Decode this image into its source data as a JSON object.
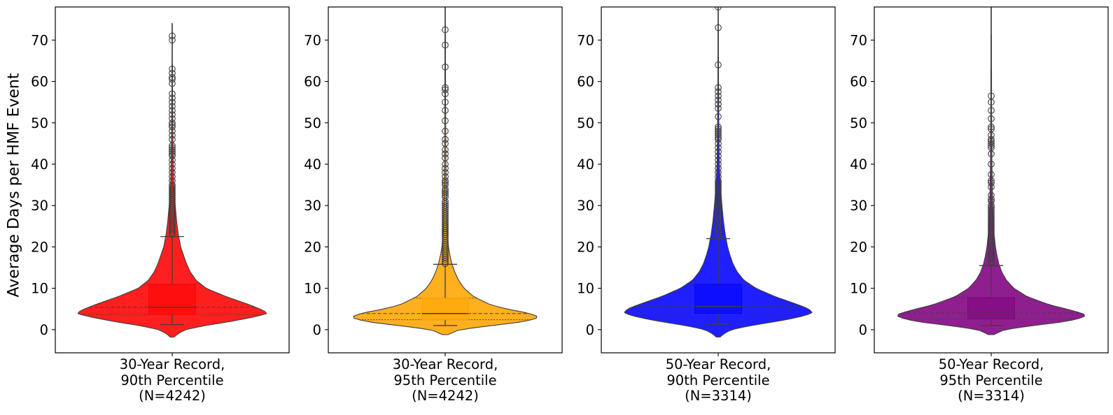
{
  "ylabel": "Average Days per HMF Event",
  "chart_data": [
    {
      "type": "violin",
      "label": [
        "30-Year Record,",
        "90th Percentile",
        "(N=4242)"
      ],
      "color": "#ff0000",
      "ylim": [
        -5.6,
        78
      ],
      "yticks": [
        0,
        10,
        20,
        30,
        40,
        50,
        60,
        70
      ],
      "box": {
        "q1": 3.7,
        "median": 5.4,
        "q3": 11.0,
        "whisker_low": 1.2,
        "whisker_high": 22.5
      },
      "violin_range": [
        -1.8,
        74
      ],
      "density": [
        [
          -1.8,
          0.02
        ],
        [
          -1,
          0.06
        ],
        [
          0,
          0.14
        ],
        [
          1,
          0.35
        ],
        [
          2,
          0.62
        ],
        [
          3,
          0.85
        ],
        [
          3.8,
          1.0
        ],
        [
          4.5,
          0.98
        ],
        [
          6,
          0.82
        ],
        [
          8,
          0.57
        ],
        [
          10,
          0.36
        ],
        [
          12,
          0.25
        ],
        [
          14,
          0.19
        ],
        [
          16,
          0.15
        ],
        [
          18,
          0.12
        ],
        [
          20,
          0.09
        ],
        [
          23,
          0.065
        ],
        [
          26,
          0.048
        ],
        [
          29,
          0.036
        ],
        [
          32,
          0.024
        ],
        [
          36,
          0.015
        ],
        [
          42,
          0.009
        ],
        [
          50,
          0.005
        ],
        [
          60,
          0.003
        ],
        [
          70,
          0.002
        ],
        [
          74,
          0.0
        ]
      ],
      "outliers": [
        23,
        23.5,
        24,
        24.5,
        25,
        25.5,
        26,
        26.5,
        27,
        27.5,
        28,
        28.5,
        29,
        29.5,
        30,
        30.5,
        31,
        31.5,
        32,
        32.5,
        33,
        33.5,
        34,
        34.5,
        35,
        36,
        37,
        38,
        39,
        40,
        41,
        42,
        42.5,
        43,
        43.5,
        44,
        44.5,
        46,
        47,
        48,
        49,
        49.5,
        50,
        51,
        52,
        53,
        54,
        55,
        56,
        57,
        59.5,
        60.5,
        61,
        62,
        63,
        70,
        71
      ]
    },
    {
      "type": "violin",
      "label": [
        "30-Year Record,",
        "95th Percentile",
        "(N=4242)"
      ],
      "color": "#ffa500",
      "ylim": [
        -5.6,
        78
      ],
      "yticks": [
        0,
        10,
        20,
        30,
        40,
        50,
        60,
        70
      ],
      "box": {
        "q1": 2.4,
        "median": 3.9,
        "q3": 7.6,
        "whisker_low": 1.0,
        "whisker_high": 15.8
      },
      "violin_range": [
        -1.2,
        78
      ],
      "density": [
        [
          -1.2,
          0.03
        ],
        [
          0,
          0.15
        ],
        [
          1,
          0.5
        ],
        [
          2,
          0.85
        ],
        [
          3,
          1.0
        ],
        [
          4,
          0.88
        ],
        [
          5,
          0.65
        ],
        [
          6,
          0.48
        ],
        [
          8,
          0.3
        ],
        [
          10,
          0.2
        ],
        [
          12,
          0.14
        ],
        [
          14,
          0.1
        ],
        [
          16,
          0.07
        ],
        [
          18,
          0.05
        ],
        [
          20,
          0.035
        ],
        [
          24,
          0.02
        ],
        [
          30,
          0.012
        ],
        [
          40,
          0.007
        ],
        [
          55,
          0.004
        ],
        [
          78,
          0.002
        ]
      ],
      "outliers": [
        16,
        16.5,
        17,
        17.5,
        18,
        18.5,
        19,
        19.5,
        20,
        20.5,
        21,
        21.5,
        22,
        22.5,
        23,
        23.5,
        24,
        24.5,
        25,
        25.5,
        26,
        26.5,
        27,
        27.5,
        28,
        28.5,
        29,
        29.5,
        30,
        30.5,
        31,
        32,
        32.5,
        33,
        33.5,
        34,
        35,
        35.5,
        36,
        37,
        38,
        39,
        40,
        41.5,
        42.5,
        43.5,
        45,
        46,
        48,
        50.5,
        53,
        55,
        57,
        58,
        58.5,
        63.5,
        68.8,
        72.5
      ]
    },
    {
      "type": "violin",
      "label": [
        "50-Year Record,",
        "90th Percentile",
        "(N=3314)"
      ],
      "color": "#0000ff",
      "ylim": [
        -5.6,
        78
      ],
      "yticks": [
        0,
        10,
        20,
        30,
        40,
        50,
        60,
        70
      ],
      "box": {
        "q1": 3.9,
        "median": 5.6,
        "q3": 11.0,
        "whisker_low": 1.3,
        "whisker_high": 22.0
      },
      "violin_range": [
        -1.8,
        78
      ],
      "density": [
        [
          -1.8,
          0.02
        ],
        [
          -1,
          0.06
        ],
        [
          0,
          0.14
        ],
        [
          1,
          0.35
        ],
        [
          2,
          0.62
        ],
        [
          3,
          0.85
        ],
        [
          4,
          1.0
        ],
        [
          5,
          0.96
        ],
        [
          6,
          0.85
        ],
        [
          8,
          0.6
        ],
        [
          10,
          0.4
        ],
        [
          12,
          0.27
        ],
        [
          14,
          0.2
        ],
        [
          16,
          0.155
        ],
        [
          18,
          0.125
        ],
        [
          20,
          0.1
        ],
        [
          23,
          0.075
        ],
        [
          26,
          0.057
        ],
        [
          29,
          0.044
        ],
        [
          32,
          0.033
        ],
        [
          35,
          0.022
        ],
        [
          40,
          0.012
        ],
        [
          48,
          0.007
        ],
        [
          60,
          0.004
        ],
        [
          78,
          0.002
        ]
      ],
      "outliers": [
        22.5,
        23,
        23.5,
        24,
        24.5,
        25,
        25.5,
        26,
        26.5,
        27,
        27.5,
        28,
        28.5,
        29,
        29.5,
        30,
        30.5,
        31,
        31.5,
        32,
        32.5,
        33,
        33.5,
        34,
        34.5,
        35,
        35.5,
        36,
        37,
        38,
        39,
        40,
        41,
        42,
        43,
        44,
        45,
        46,
        46.5,
        47,
        47.5,
        48,
        48.5,
        49,
        51.5,
        53.5,
        54.5,
        55.5,
        56.5,
        57.5,
        58.5,
        64,
        73,
        78
      ]
    },
    {
      "type": "violin",
      "label": [
        "50-Year Record,",
        "95th Percentile",
        "(N=3314)"
      ],
      "color": "#800080",
      "ylim": [
        -5.6,
        78
      ],
      "yticks": [
        0,
        10,
        20,
        30,
        40,
        50,
        60,
        70
      ],
      "box": {
        "q1": 2.6,
        "median": 4.0,
        "q3": 7.8,
        "whisker_low": 1.0,
        "whisker_high": 15.5
      },
      "violin_range": [
        -1.2,
        78
      ],
      "density": [
        [
          -1.2,
          0.03
        ],
        [
          0,
          0.14
        ],
        [
          1,
          0.45
        ],
        [
          2,
          0.8
        ],
        [
          3,
          0.98
        ],
        [
          3.6,
          1.0
        ],
        [
          4.5,
          0.88
        ],
        [
          6,
          0.62
        ],
        [
          8,
          0.38
        ],
        [
          10,
          0.24
        ],
        [
          12,
          0.16
        ],
        [
          14,
          0.11
        ],
        [
          16,
          0.08
        ],
        [
          18,
          0.06
        ],
        [
          20,
          0.045
        ],
        [
          24,
          0.026
        ],
        [
          30,
          0.015
        ],
        [
          40,
          0.008
        ],
        [
          55,
          0.004
        ],
        [
          78,
          0.002
        ]
      ],
      "outliers": [
        16,
        16.5,
        17,
        17.5,
        18,
        18.5,
        19,
        19.5,
        20,
        20.5,
        21,
        21.5,
        22,
        22.5,
        23,
        23.5,
        24,
        24.5,
        25,
        25.5,
        26,
        26.5,
        27,
        27.5,
        28,
        28.5,
        29,
        29.5,
        30,
        31,
        31.5,
        32.5,
        34.5,
        35.5,
        36,
        37.5,
        40,
        42.5,
        44,
        44.5,
        45,
        45.5,
        46,
        47,
        48.5,
        49,
        51,
        53,
        55,
        56.5
      ]
    }
  ]
}
